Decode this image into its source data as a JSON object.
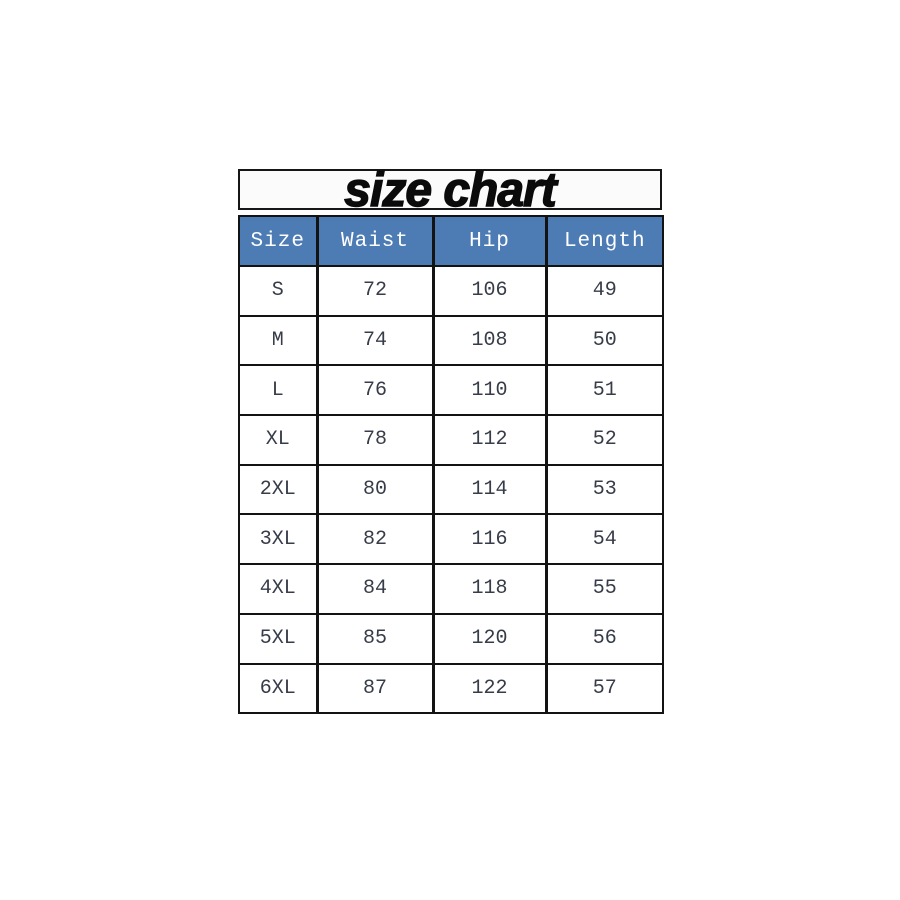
{
  "title": {
    "text": "size chart"
  },
  "chart_data": {
    "type": "table",
    "title": "size chart",
    "columns": [
      "Size",
      "Waist",
      "Hip",
      "Length"
    ],
    "rows": [
      [
        "S",
        "72",
        "106",
        "49"
      ],
      [
        "M",
        "74",
        "108",
        "50"
      ],
      [
        "L",
        "76",
        "110",
        "51"
      ],
      [
        "XL",
        "78",
        "112",
        "52"
      ],
      [
        "2XL",
        "80",
        "114",
        "53"
      ],
      [
        "3XL",
        "82",
        "116",
        "54"
      ],
      [
        "4XL",
        "84",
        "118",
        "55"
      ],
      [
        "5XL",
        "85",
        "120",
        "56"
      ],
      [
        "6XL",
        "87",
        "122",
        "57"
      ]
    ],
    "colors": {
      "header_bg": "#4d7cb5",
      "header_text": "#ffffff",
      "cell_text": "#373c49",
      "grid_border": "#131313",
      "title_text": "#0b0b0b",
      "page_bg": "#ffffff"
    },
    "layout_hints": {
      "legend_position": "none",
      "grid": "on"
    }
  }
}
